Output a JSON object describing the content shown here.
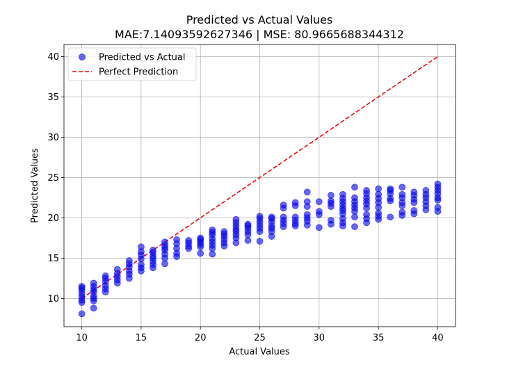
{
  "chart_data": {
    "type": "scatter",
    "title": "Predicted vs Actual Values",
    "subtitle": "MAE:7.14093592627346 | MSE: 80.9665688344312",
    "xlabel": "Actual Values",
    "ylabel": "Predicted Values",
    "xlim": [
      8.5,
      41.5
    ],
    "ylim": [
      6.5,
      41.5
    ],
    "xticks": [
      10,
      15,
      20,
      25,
      30,
      35,
      40
    ],
    "yticks": [
      10,
      15,
      20,
      25,
      30,
      35,
      40
    ],
    "grid": true,
    "legend_position": "top-left",
    "series": [
      {
        "name": "Predicted vs Actual",
        "kind": "scatter",
        "color": "#0000ff",
        "alpha": 0.6,
        "points": [
          [
            10,
            8.1
          ],
          [
            10,
            9.5
          ],
          [
            10,
            9.8
          ],
          [
            10,
            10.2
          ],
          [
            10,
            10.6
          ],
          [
            10,
            11.0
          ],
          [
            10,
            11.3
          ],
          [
            10,
            11.5
          ],
          [
            11,
            8.8
          ],
          [
            11,
            9.7
          ],
          [
            11,
            10.0
          ],
          [
            11,
            10.3
          ],
          [
            11,
            10.8
          ],
          [
            11,
            11.1
          ],
          [
            11,
            11.5
          ],
          [
            11,
            11.9
          ],
          [
            12,
            10.8
          ],
          [
            12,
            11.2
          ],
          [
            12,
            11.6
          ],
          [
            12,
            12.1
          ],
          [
            12,
            12.5
          ],
          [
            12,
            12.8
          ],
          [
            13,
            11.9
          ],
          [
            13,
            12.3
          ],
          [
            13,
            12.7
          ],
          [
            13,
            13.1
          ],
          [
            13,
            13.6
          ],
          [
            14,
            12.5
          ],
          [
            14,
            13.0
          ],
          [
            14,
            13.4
          ],
          [
            14,
            13.9
          ],
          [
            14,
            14.3
          ],
          [
            14,
            14.7
          ],
          [
            15,
            13.4
          ],
          [
            15,
            13.8
          ],
          [
            15,
            14.2
          ],
          [
            15,
            14.9
          ],
          [
            15,
            15.4
          ],
          [
            15,
            15.8
          ],
          [
            15,
            16.4
          ],
          [
            16,
            13.8
          ],
          [
            16,
            14.2
          ],
          [
            16,
            14.6
          ],
          [
            16,
            15.0
          ],
          [
            16,
            15.3
          ],
          [
            16,
            15.7
          ],
          [
            16,
            16.0
          ],
          [
            17,
            14.3
          ],
          [
            17,
            15.0
          ],
          [
            17,
            15.5
          ],
          [
            17,
            16.0
          ],
          [
            17,
            16.3
          ],
          [
            17,
            16.6
          ],
          [
            17,
            17.0
          ],
          [
            18,
            15.2
          ],
          [
            18,
            15.6
          ],
          [
            18,
            16.2
          ],
          [
            18,
            16.8
          ],
          [
            18,
            17.3
          ],
          [
            19,
            16.2
          ],
          [
            19,
            16.5
          ],
          [
            19,
            16.9
          ],
          [
            19,
            17.2
          ],
          [
            20,
            15.6
          ],
          [
            20,
            16.4
          ],
          [
            20,
            16.7
          ],
          [
            20,
            17.0
          ],
          [
            20,
            17.3
          ],
          [
            20,
            17.5
          ],
          [
            21,
            15.5
          ],
          [
            21,
            16.2
          ],
          [
            21,
            16.6
          ],
          [
            21,
            17.0
          ],
          [
            21,
            17.4
          ],
          [
            21,
            17.9
          ],
          [
            21,
            18.2
          ],
          [
            21,
            18.5
          ],
          [
            22,
            16.5
          ],
          [
            22,
            16.9
          ],
          [
            22,
            17.3
          ],
          [
            22,
            17.7
          ],
          [
            22,
            18.0
          ],
          [
            22,
            18.3
          ],
          [
            23,
            16.9
          ],
          [
            23,
            17.5
          ],
          [
            23,
            17.9
          ],
          [
            23,
            18.3
          ],
          [
            23,
            18.6
          ],
          [
            23,
            19.0
          ],
          [
            23,
            19.4
          ],
          [
            23,
            19.8
          ],
          [
            24,
            17.2
          ],
          [
            24,
            17.9
          ],
          [
            24,
            18.3
          ],
          [
            24,
            18.7
          ],
          [
            24,
            19.0
          ],
          [
            24,
            19.2
          ],
          [
            25,
            17.1
          ],
          [
            25,
            18.3
          ],
          [
            25,
            18.7
          ],
          [
            25,
            19.1
          ],
          [
            25,
            19.5
          ],
          [
            25,
            19.9
          ],
          [
            25,
            20.2
          ],
          [
            26,
            17.7
          ],
          [
            26,
            18.3
          ],
          [
            26,
            18.7
          ],
          [
            26,
            19.0
          ],
          [
            26,
            19.5
          ],
          [
            26,
            19.9
          ],
          [
            26,
            20.1
          ],
          [
            27,
            18.9
          ],
          [
            27,
            19.3
          ],
          [
            27,
            19.7
          ],
          [
            27,
            20.1
          ],
          [
            27,
            21.2
          ],
          [
            27,
            21.6
          ],
          [
            28,
            19.0
          ],
          [
            28,
            19.3
          ],
          [
            28,
            19.7
          ],
          [
            28,
            20.1
          ],
          [
            28,
            21.5
          ],
          [
            28,
            21.9
          ],
          [
            29,
            19.1
          ],
          [
            29,
            19.6
          ],
          [
            29,
            20.0
          ],
          [
            29,
            20.4
          ],
          [
            29,
            21.4
          ],
          [
            29,
            22.0
          ],
          [
            29,
            23.2
          ],
          [
            30,
            18.8
          ],
          [
            30,
            20.4
          ],
          [
            30,
            20.8
          ],
          [
            30,
            22.0
          ],
          [
            31,
            19.2
          ],
          [
            31,
            19.7
          ],
          [
            31,
            21.4
          ],
          [
            31,
            21.8
          ],
          [
            31,
            22.1
          ],
          [
            31,
            22.8
          ],
          [
            32,
            19.0
          ],
          [
            32,
            19.4
          ],
          [
            32,
            19.9
          ],
          [
            32,
            20.5
          ],
          [
            32,
            20.9
          ],
          [
            32,
            21.2
          ],
          [
            32,
            21.6
          ],
          [
            32,
            22.0
          ],
          [
            32,
            22.4
          ],
          [
            32,
            22.9
          ],
          [
            33,
            18.9
          ],
          [
            33,
            20.1
          ],
          [
            33,
            20.8
          ],
          [
            33,
            21.2
          ],
          [
            33,
            21.6
          ],
          [
            33,
            22.0
          ],
          [
            33,
            22.5
          ],
          [
            33,
            23.8
          ],
          [
            34,
            19.4
          ],
          [
            34,
            19.9
          ],
          [
            34,
            20.4
          ],
          [
            34,
            21.2
          ],
          [
            34,
            21.7
          ],
          [
            34,
            22.1
          ],
          [
            34,
            22.5
          ],
          [
            34,
            23.0
          ],
          [
            34,
            23.4
          ],
          [
            35,
            19.8
          ],
          [
            35,
            20.2
          ],
          [
            35,
            20.6
          ],
          [
            35,
            21.3
          ],
          [
            35,
            21.9
          ],
          [
            35,
            22.4
          ],
          [
            35,
            22.9
          ],
          [
            35,
            23.6
          ],
          [
            36,
            20.1
          ],
          [
            36,
            22.1
          ],
          [
            36,
            22.4
          ],
          [
            36,
            23.0
          ],
          [
            36,
            23.4
          ],
          [
            36,
            23.6
          ],
          [
            37,
            20.3
          ],
          [
            37,
            20.7
          ],
          [
            37,
            21.5
          ],
          [
            37,
            21.9
          ],
          [
            37,
            22.5
          ],
          [
            37,
            22.9
          ],
          [
            37,
            23.8
          ],
          [
            38,
            20.5
          ],
          [
            38,
            20.9
          ],
          [
            38,
            21.9
          ],
          [
            38,
            22.3
          ],
          [
            38,
            22.8
          ],
          [
            38,
            23.2
          ],
          [
            39,
            21.0
          ],
          [
            39,
            21.5
          ],
          [
            39,
            22.0
          ],
          [
            39,
            22.5
          ],
          [
            39,
            22.9
          ],
          [
            39,
            23.4
          ],
          [
            40,
            20.8
          ],
          [
            40,
            21.3
          ],
          [
            40,
            22.2
          ],
          [
            40,
            22.5
          ],
          [
            40,
            23.0
          ],
          [
            40,
            23.4
          ],
          [
            40,
            23.8
          ],
          [
            40,
            24.2
          ]
        ]
      },
      {
        "name": "Perfect Prediction",
        "kind": "line",
        "style": "dashed",
        "color": "#ff0000",
        "x": [
          10,
          40
        ],
        "y": [
          10,
          40
        ]
      }
    ]
  }
}
